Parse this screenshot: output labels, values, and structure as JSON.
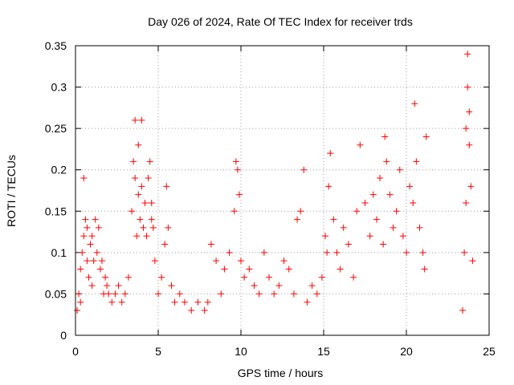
{
  "chart_data": {
    "type": "scatter",
    "title": "Day 026 of 2024, Rate Of TEC Index for receiver trds",
    "xlabel": "GPS time / hours",
    "ylabel": "ROTI / TECUs",
    "xlim": [
      0,
      25
    ],
    "ylim": [
      0,
      0.35
    ],
    "xticks": [
      0,
      5,
      10,
      15,
      20,
      25
    ],
    "xtick_labels": [
      "0",
      "5",
      "10",
      "15",
      "20",
      "25"
    ],
    "yticks": [
      0,
      0.05,
      0.1,
      0.15,
      0.2,
      0.25,
      0.3,
      0.35
    ],
    "ytick_labels": [
      "0",
      "0.05",
      "0.1",
      "0.15",
      "0.2",
      "0.25",
      "0.3",
      "0.35"
    ],
    "grid": true,
    "marker": "+",
    "color": "#ff0000",
    "series": [
      {
        "x": [
          0.1,
          0.2,
          0.3,
          0.3,
          0.4,
          0.5,
          0.5,
          0.6,
          0.7,
          0.7,
          0.8,
          0.9,
          1.0,
          1.0,
          1.1,
          1.2,
          1.3,
          1.4,
          1.5,
          1.6,
          1.7,
          1.8,
          1.9,
          2.0,
          2.2,
          2.4,
          2.6,
          2.8,
          3.0,
          3.2,
          3.4,
          3.5,
          3.6,
          3.6,
          3.7,
          3.8,
          3.8,
          3.9,
          4.0,
          4.0,
          4.1,
          4.2,
          4.3,
          4.4,
          4.5,
          4.6,
          4.6,
          4.7,
          4.8,
          5.0,
          5.2,
          5.4,
          5.5,
          5.6,
          5.8,
          6.0,
          6.3,
          6.6,
          7.0,
          7.4,
          7.8,
          8.0,
          8.2,
          8.5,
          8.8,
          9.0,
          9.3,
          9.6,
          9.7,
          9.8,
          9.9,
          10.0,
          10.2,
          10.5,
          10.8,
          11.1,
          11.4,
          11.7,
          12.0,
          12.3,
          12.6,
          12.9,
          13.2,
          13.4,
          13.6,
          13.8,
          14.0,
          14.3,
          14.6,
          14.9,
          15.1,
          15.2,
          15.3,
          15.4,
          15.6,
          15.8,
          16.0,
          16.2,
          16.5,
          16.8,
          17.0,
          17.2,
          17.5,
          17.8,
          18.0,
          18.2,
          18.4,
          18.6,
          18.7,
          18.8,
          19.0,
          19.2,
          19.4,
          19.6,
          19.8,
          20.0,
          20.2,
          20.4,
          20.5,
          20.6,
          20.8,
          21.0,
          21.1,
          21.2,
          23.4,
          23.5,
          23.6,
          23.6,
          23.7,
          23.7,
          23.8,
          23.8,
          23.9,
          24.0
        ],
        "y": [
          0.03,
          0.05,
          0.04,
          0.08,
          0.1,
          0.19,
          0.12,
          0.14,
          0.09,
          0.13,
          0.07,
          0.11,
          0.12,
          0.06,
          0.09,
          0.14,
          0.1,
          0.13,
          0.08,
          0.09,
          0.05,
          0.07,
          0.06,
          0.05,
          0.04,
          0.05,
          0.06,
          0.04,
          0.05,
          0.07,
          0.15,
          0.21,
          0.26,
          0.19,
          0.12,
          0.17,
          0.23,
          0.14,
          0.18,
          0.26,
          0.13,
          0.16,
          0.12,
          0.19,
          0.21,
          0.16,
          0.14,
          0.13,
          0.09,
          0.05,
          0.07,
          0.11,
          0.18,
          0.13,
          0.06,
          0.04,
          0.05,
          0.04,
          0.03,
          0.04,
          0.03,
          0.04,
          0.11,
          0.09,
          0.05,
          0.08,
          0.1,
          0.15,
          0.21,
          0.2,
          0.17,
          0.09,
          0.07,
          0.08,
          0.06,
          0.05,
          0.1,
          0.07,
          0.05,
          0.06,
          0.09,
          0.08,
          0.05,
          0.14,
          0.15,
          0.2,
          0.04,
          0.06,
          0.05,
          0.07,
          0.12,
          0.1,
          0.18,
          0.22,
          0.14,
          0.1,
          0.08,
          0.13,
          0.11,
          0.07,
          0.15,
          0.23,
          0.16,
          0.12,
          0.17,
          0.14,
          0.19,
          0.11,
          0.24,
          0.21,
          0.17,
          0.13,
          0.15,
          0.2,
          0.12,
          0.1,
          0.18,
          0.16,
          0.28,
          0.21,
          0.13,
          0.1,
          0.08,
          0.24,
          0.03,
          0.1,
          0.16,
          0.25,
          0.34,
          0.3,
          0.23,
          0.27,
          0.18,
          0.09
        ]
      }
    ]
  }
}
